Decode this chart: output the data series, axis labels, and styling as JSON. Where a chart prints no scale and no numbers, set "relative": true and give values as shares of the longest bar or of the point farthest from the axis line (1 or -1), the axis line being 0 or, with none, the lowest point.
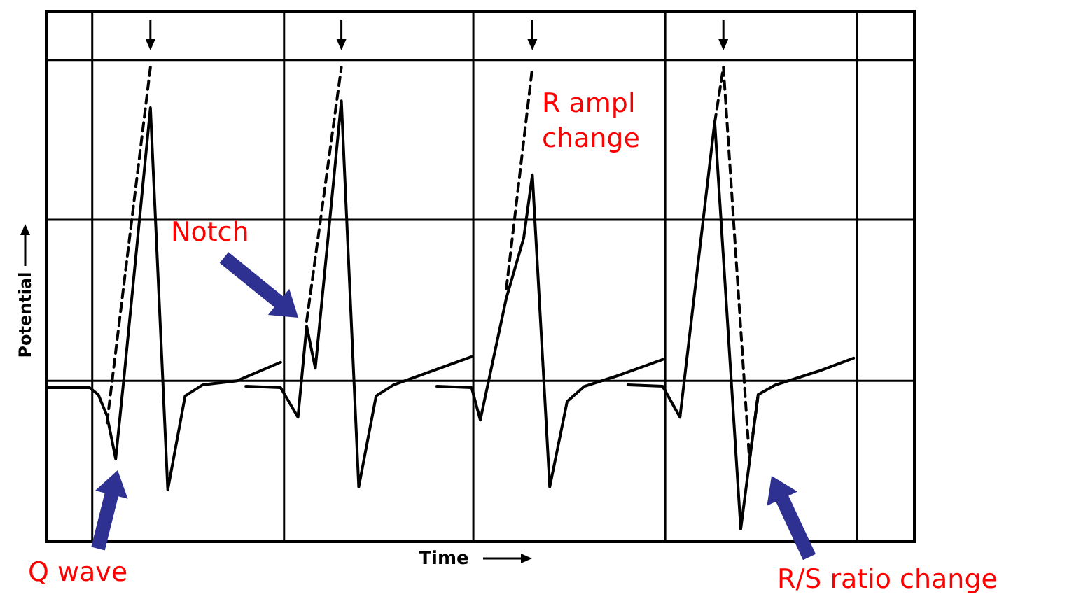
{
  "chart_data": {
    "type": "line",
    "relative": true,
    "xlabel": "Time",
    "ylabel": "Potential",
    "grid": true,
    "marker": "none",
    "categories": [
      null,
      null,
      null,
      null,
      null,
      null,
      null,
      null,
      null,
      null,
      null,
      null,
      null,
      null,
      null,
      null,
      null,
      null,
      null,
      null,
      null,
      null,
      null,
      null,
      null,
      null,
      null,
      null,
      null,
      null,
      null,
      null,
      null,
      null,
      null,
      null,
      null,
      null,
      null,
      null,
      null,
      null,
      null,
      null,
      null,
      null,
      null,
      null,
      null,
      null,
      null,
      null,
      null,
      null,
      null,
      null,
      null,
      null,
      null,
      null,
      null,
      null,
      null,
      null,
      null,
      null,
      null,
      null,
      null,
      null,
      null,
      null,
      null,
      null,
      null,
      null,
      null,
      null,
      null,
      null,
      null,
      null,
      null,
      null,
      null,
      null,
      null,
      null,
      null,
      null,
      null,
      null,
      null,
      null
    ],
    "series": [
      {
        "color": "#000000",
        "line_style": "solid",
        "values": [
          0.306,
          null,
          null,
          null,
          null,
          0.306,
          0.291,
          0.245,
          0.152,
          0.336,
          null,
          null,
          0.912,
          null,
          0.085,
          null,
          0.288,
          null,
          0.312,
          null,
          null,
          null,
          0.321,
          null,
          null,
          null,
          null,
          0.361,
          null,
          null,
          null,
          null,
          null,
          null,
          null,
          null,
          null,
          null,
          null,
          null,
          null,
          null,
          null,
          null,
          null,
          null,
          null,
          null,
          null,
          null,
          null,
          null,
          null,
          null,
          null,
          null,
          null,
          null,
          null,
          null,
          null,
          null,
          null,
          null,
          null,
          null,
          null,
          null,
          null,
          null,
          null,
          null,
          null,
          null,
          null,
          null,
          null,
          null,
          null,
          null,
          null,
          null,
          null,
          null,
          null,
          null,
          null,
          null,
          null,
          null,
          null,
          null,
          null,
          null
        ]
      },
      {
        "color": "#000000",
        "line_style": "dashed",
        "values": [
          null,
          null,
          null,
          null,
          null,
          null,
          null,
          0.23,
          null,
          null,
          null,
          null,
          1.0,
          null,
          null,
          null,
          null,
          null,
          null,
          null,
          null,
          null,
          null,
          null,
          null,
          null,
          null,
          null,
          null,
          null,
          null,
          null,
          null,
          null,
          null,
          null,
          null,
          null,
          null,
          null,
          null,
          null,
          null,
          null,
          null,
          null,
          null,
          null,
          null,
          null,
          null,
          null,
          null,
          null,
          null,
          null,
          null,
          null,
          null,
          null,
          null,
          null,
          null,
          null,
          null,
          null,
          null,
          null,
          null,
          null,
          null,
          null,
          null,
          null,
          null,
          null,
          null,
          null,
          null,
          null,
          null,
          null,
          null,
          null,
          null,
          null,
          null,
          null,
          null,
          null,
          null,
          null,
          null,
          null
        ]
      },
      {
        "color": "#000000",
        "line_style": "solid",
        "values": [
          null,
          null,
          null,
          null,
          null,
          null,
          null,
          null,
          null,
          null,
          null,
          null,
          null,
          null,
          null,
          null,
          null,
          null,
          null,
          null,
          null,
          null,
          null,
          0.309,
          null,
          null,
          null,
          0.306,
          null,
          0.242,
          0.439,
          0.348,
          null,
          null,
          0.927,
          null,
          0.091,
          null,
          0.288,
          null,
          0.312,
          null,
          null,
          null,
          null,
          null,
          null,
          null,
          null,
          0.373,
          null,
          null,
          null,
          null,
          null,
          null,
          null,
          null,
          null,
          null,
          null,
          null,
          null,
          null,
          null,
          null,
          null,
          null,
          null,
          null,
          null,
          null,
          null,
          null,
          null,
          null,
          null,
          null,
          null,
          null,
          null,
          null,
          null,
          null,
          null,
          null,
          null,
          null,
          null,
          null,
          null,
          null,
          null,
          null
        ]
      },
      {
        "color": "#000000",
        "line_style": "dashed",
        "values": [
          null,
          null,
          null,
          null,
          null,
          null,
          null,
          null,
          null,
          null,
          null,
          null,
          null,
          null,
          null,
          null,
          null,
          null,
          null,
          null,
          null,
          null,
          null,
          null,
          null,
          null,
          null,
          null,
          null,
          null,
          0.45,
          null,
          null,
          null,
          1.0,
          null,
          null,
          null,
          null,
          null,
          null,
          null,
          null,
          null,
          null,
          null,
          null,
          null,
          null,
          null,
          null,
          null,
          null,
          null,
          null,
          null,
          null,
          null,
          null,
          null,
          null,
          null,
          null,
          null,
          null,
          null,
          null,
          null,
          null,
          null,
          null,
          null,
          null,
          null,
          null,
          null,
          null,
          null,
          null,
          null,
          null,
          null,
          null,
          null,
          null,
          null,
          null,
          null,
          null,
          null,
          null,
          null,
          null,
          null
        ]
      },
      {
        "color": "#000000",
        "line_style": "solid",
        "values": [
          null,
          null,
          null,
          null,
          null,
          null,
          null,
          null,
          null,
          null,
          null,
          null,
          null,
          null,
          null,
          null,
          null,
          null,
          null,
          null,
          null,
          null,
          null,
          null,
          null,
          null,
          null,
          null,
          null,
          null,
          null,
          null,
          null,
          null,
          null,
          null,
          null,
          null,
          null,
          null,
          null,
          null,
          null,
          null,
          null,
          0.309,
          null,
          null,
          null,
          0.306,
          0.236,
          null,
          null,
          0.5,
          null,
          0.63,
          0.767,
          null,
          0.091,
          null,
          0.276,
          null,
          0.309,
          null,
          null,
          null,
          0.333,
          null,
          null,
          null,
          null,
          0.367,
          null,
          null,
          null,
          null,
          null,
          null,
          null,
          null,
          null,
          null,
          null,
          null,
          null,
          null,
          null,
          null,
          null,
          null,
          null,
          null,
          null,
          null
        ]
      },
      {
        "color": "#000000",
        "line_style": "dashed",
        "values": [
          null,
          null,
          null,
          null,
          null,
          null,
          null,
          null,
          null,
          null,
          null,
          null,
          null,
          null,
          null,
          null,
          null,
          null,
          null,
          null,
          null,
          null,
          null,
          null,
          null,
          null,
          null,
          null,
          null,
          null,
          null,
          null,
          null,
          null,
          null,
          null,
          null,
          null,
          null,
          null,
          null,
          null,
          null,
          null,
          null,
          null,
          null,
          null,
          null,
          null,
          null,
          null,
          null,
          0.52,
          null,
          null,
          1.0,
          null,
          null,
          null,
          null,
          null,
          null,
          null,
          null,
          null,
          null,
          null,
          null,
          null,
          null,
          null,
          null,
          null,
          null,
          null,
          null,
          null,
          null,
          null,
          null,
          null,
          null,
          null,
          null,
          null,
          null,
          null,
          null,
          null,
          null,
          null,
          null,
          null
        ]
      },
      {
        "color": "#000000",
        "line_style": "solid",
        "values": [
          null,
          null,
          null,
          null,
          null,
          null,
          null,
          null,
          null,
          null,
          null,
          null,
          null,
          null,
          null,
          null,
          null,
          null,
          null,
          null,
          null,
          null,
          null,
          null,
          null,
          null,
          null,
          null,
          null,
          null,
          null,
          null,
          null,
          null,
          null,
          null,
          null,
          null,
          null,
          null,
          null,
          null,
          null,
          null,
          null,
          null,
          null,
          null,
          null,
          null,
          null,
          null,
          null,
          null,
          null,
          null,
          null,
          null,
          null,
          null,
          null,
          null,
          null,
          null,
          null,
          null,
          null,
          0.312,
          null,
          null,
          null,
          0.309,
          null,
          0.242,
          null,
          null,
          null,
          0.882,
          null,
          null,
          0,
          null,
          0.291,
          null,
          0.312,
          null,
          null,
          null,
          null,
          0.342,
          null,
          null,
          null,
          0.37
        ]
      },
      {
        "color": "#000000",
        "line_style": "dashed",
        "values": [
          null,
          null,
          null,
          null,
          null,
          null,
          null,
          null,
          null,
          null,
          null,
          null,
          null,
          null,
          null,
          null,
          null,
          null,
          null,
          null,
          null,
          null,
          null,
          null,
          null,
          null,
          null,
          null,
          null,
          null,
          null,
          null,
          null,
          null,
          null,
          null,
          null,
          null,
          null,
          null,
          null,
          null,
          null,
          null,
          null,
          null,
          null,
          null,
          null,
          null,
          null,
          null,
          null,
          null,
          null,
          null,
          null,
          null,
          null,
          null,
          null,
          null,
          null,
          null,
          null,
          null,
          null,
          null,
          null,
          null,
          null,
          null,
          null,
          null,
          null,
          null,
          null,
          0.88,
          1.0,
          null,
          null,
          0.15,
          0.29,
          null,
          null,
          null,
          null,
          null,
          null,
          null,
          null,
          null,
          null,
          null
        ]
      }
    ],
    "annotations": [
      "Q wave",
      "Notch",
      "R ampl change",
      "R/S ratio change"
    ]
  }
}
